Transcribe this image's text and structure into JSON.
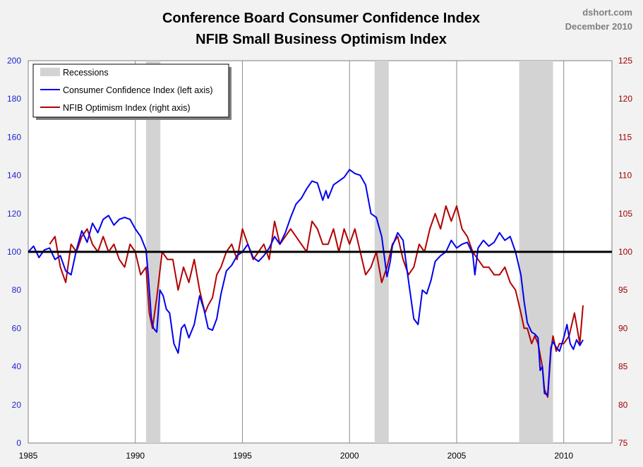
{
  "chart_data": {
    "type": "line",
    "title": "Conference Board Consumer Confidence Index",
    "subtitle": "NFIB Small Business Optimism Index",
    "credit": "dshort.com",
    "credit_date": "December 2010",
    "x_ticks": [
      "1985",
      "1990",
      "1995",
      "2000",
      "2005",
      "2010"
    ],
    "xlim": [
      1985,
      2012.25
    ],
    "y_left": {
      "ticks": [
        "0",
        "20",
        "40",
        "60",
        "80",
        "100",
        "120",
        "140",
        "160",
        "180",
        "200"
      ],
      "lim": [
        0,
        200
      ],
      "color": "#1f1fd0"
    },
    "y_right": {
      "ticks": [
        "75",
        "80",
        "85",
        "90",
        "95",
        "100",
        "105",
        "110",
        "115",
        "120",
        "125"
      ],
      "lim": [
        75,
        125
      ],
      "color": "#a00000"
    },
    "reference_line": {
      "value": 100,
      "axis": "left"
    },
    "recessions": [
      {
        "start": 1990.5,
        "end": 1991.17
      },
      {
        "start": 2001.17,
        "end": 2001.83
      },
      {
        "start": 2007.92,
        "end": 2009.5
      }
    ],
    "legend": {
      "recessions": "Recessions",
      "consumer": "Consumer Confidence Index (left axis)",
      "nfib": "NFIB Optimism Index (right axis)"
    },
    "series": [
      {
        "name": "Consumer Confidence Index (left axis)",
        "axis": "left",
        "color": "#0000ee",
        "x": [
          1985.0,
          1985.25,
          1985.5,
          1985.75,
          1986.0,
          1986.25,
          1986.5,
          1986.75,
          1987.0,
          1987.25,
          1987.5,
          1987.75,
          1988.0,
          1988.25,
          1988.5,
          1988.75,
          1989.0,
          1989.25,
          1989.5,
          1989.75,
          1990.0,
          1990.25,
          1990.5,
          1990.6,
          1990.75,
          1990.85,
          1991.0,
          1991.15,
          1991.3,
          1991.45,
          1991.6,
          1991.8,
          1992.0,
          1992.15,
          1992.3,
          1992.5,
          1992.75,
          1993.0,
          1993.2,
          1993.4,
          1993.6,
          1993.8,
          1994.0,
          1994.25,
          1994.5,
          1994.75,
          1995.0,
          1995.25,
          1995.5,
          1995.75,
          1996.0,
          1996.25,
          1996.5,
          1996.75,
          1997.0,
          1997.25,
          1997.5,
          1997.75,
          1998.0,
          1998.25,
          1998.5,
          1998.75,
          1998.9,
          1999.0,
          1999.25,
          1999.5,
          1999.75,
          2000.0,
          2000.25,
          2000.5,
          2000.75,
          2001.0,
          2001.25,
          2001.5,
          2001.75,
          2001.9,
          2002.0,
          2002.25,
          2002.5,
          2002.75,
          2003.0,
          2003.2,
          2003.4,
          2003.6,
          2003.8,
          2004.0,
          2004.25,
          2004.5,
          2004.75,
          2005.0,
          2005.25,
          2005.5,
          2005.75,
          2005.85,
          2006.0,
          2006.25,
          2006.5,
          2006.75,
          2007.0,
          2007.25,
          2007.5,
          2007.75,
          2008.0,
          2008.15,
          2008.3,
          2008.5,
          2008.65,
          2008.8,
          2008.9,
          2009.0,
          2009.1,
          2009.25,
          2009.4,
          2009.5,
          2009.65,
          2009.8,
          2010.0,
          2010.15,
          2010.3,
          2010.45,
          2010.6,
          2010.75,
          2010.9
        ],
        "values": [
          100,
          103,
          97,
          101,
          102,
          96,
          98,
          90,
          88,
          101,
          111,
          105,
          115,
          110,
          117,
          119,
          114,
          117,
          118,
          117,
          112,
          108,
          101,
          88,
          65,
          60,
          58,
          80,
          77,
          70,
          68,
          52,
          47,
          60,
          62,
          55,
          62,
          77,
          70,
          60,
          59,
          65,
          78,
          90,
          93,
          98,
          100,
          104,
          97,
          95,
          98,
          102,
          108,
          104,
          110,
          118,
          125,
          128,
          133,
          137,
          136,
          127,
          132,
          128,
          135,
          137,
          139,
          143,
          141,
          140,
          135,
          120,
          118,
          108,
          87,
          95,
          103,
          110,
          106,
          85,
          65,
          62,
          80,
          78,
          85,
          95,
          98,
          100,
          106,
          102,
          104,
          105,
          99,
          88,
          102,
          106,
          103,
          105,
          110,
          106,
          108,
          100,
          88,
          74,
          63,
          58,
          57,
          55,
          38,
          40,
          26,
          25,
          50,
          53,
          50,
          48,
          55,
          62,
          52,
          49,
          54,
          51,
          54
        ]
      },
      {
        "name": "NFIB Optimism Index (right axis)",
        "axis": "right",
        "color": "#b20000",
        "x": [
          1986.0,
          1986.25,
          1986.5,
          1986.75,
          1987.0,
          1987.25,
          1987.5,
          1987.75,
          1988.0,
          1988.25,
          1988.5,
          1988.75,
          1989.0,
          1989.25,
          1989.5,
          1989.75,
          1990.0,
          1990.25,
          1990.5,
          1990.65,
          1990.8,
          1991.0,
          1991.25,
          1991.5,
          1991.75,
          1992.0,
          1992.25,
          1992.5,
          1992.75,
          1993.0,
          1993.25,
          1993.4,
          1993.6,
          1993.8,
          1994.0,
          1994.25,
          1994.5,
          1994.75,
          1995.0,
          1995.25,
          1995.5,
          1995.75,
          1996.0,
          1996.25,
          1996.5,
          1996.75,
          1997.0,
          1997.25,
          1997.5,
          1997.75,
          1998.0,
          1998.25,
          1998.5,
          1998.75,
          1999.0,
          1999.25,
          1999.5,
          1999.75,
          2000.0,
          2000.25,
          2000.5,
          2000.75,
          2001.0,
          2001.25,
          2001.5,
          2001.75,
          2002.0,
          2002.25,
          2002.5,
          2002.75,
          2003.0,
          2003.25,
          2003.5,
          2003.75,
          2004.0,
          2004.25,
          2004.5,
          2004.75,
          2005.0,
          2005.25,
          2005.5,
          2005.75,
          2006.0,
          2006.25,
          2006.5,
          2006.75,
          2007.0,
          2007.25,
          2007.5,
          2007.75,
          2008.0,
          2008.15,
          2008.3,
          2008.5,
          2008.65,
          2008.8,
          2009.0,
          2009.1,
          2009.25,
          2009.4,
          2009.5,
          2009.65,
          2009.8,
          2010.0,
          2010.25,
          2010.5,
          2010.75,
          2010.9
        ],
        "values": [
          101,
          102,
          98,
          96,
          101,
          100,
          102,
          103,
          101,
          100,
          102,
          100,
          101,
          99,
          98,
          101,
          100,
          97,
          98,
          92,
          90,
          94,
          100,
          99,
          99,
          95,
          98,
          96,
          99,
          95,
          92,
          93,
          94,
          97,
          98,
          100,
          101,
          99,
          103,
          101,
          99,
          100,
          101,
          99,
          104,
          101,
          102,
          103,
          102,
          101,
          100,
          104,
          103,
          101,
          101,
          103,
          100,
          103,
          101,
          103,
          100,
          97,
          98,
          100,
          96,
          98,
          101,
          102,
          99,
          97,
          98,
          101,
          100,
          103,
          105,
          103,
          106,
          104,
          106,
          103,
          102,
          100,
          99,
          98,
          98,
          97,
          97,
          98,
          96,
          95,
          92,
          90,
          90,
          88,
          89,
          88,
          85,
          82,
          81,
          87,
          89,
          87,
          88,
          88,
          89,
          92,
          88,
          93
        ]
      }
    ]
  }
}
